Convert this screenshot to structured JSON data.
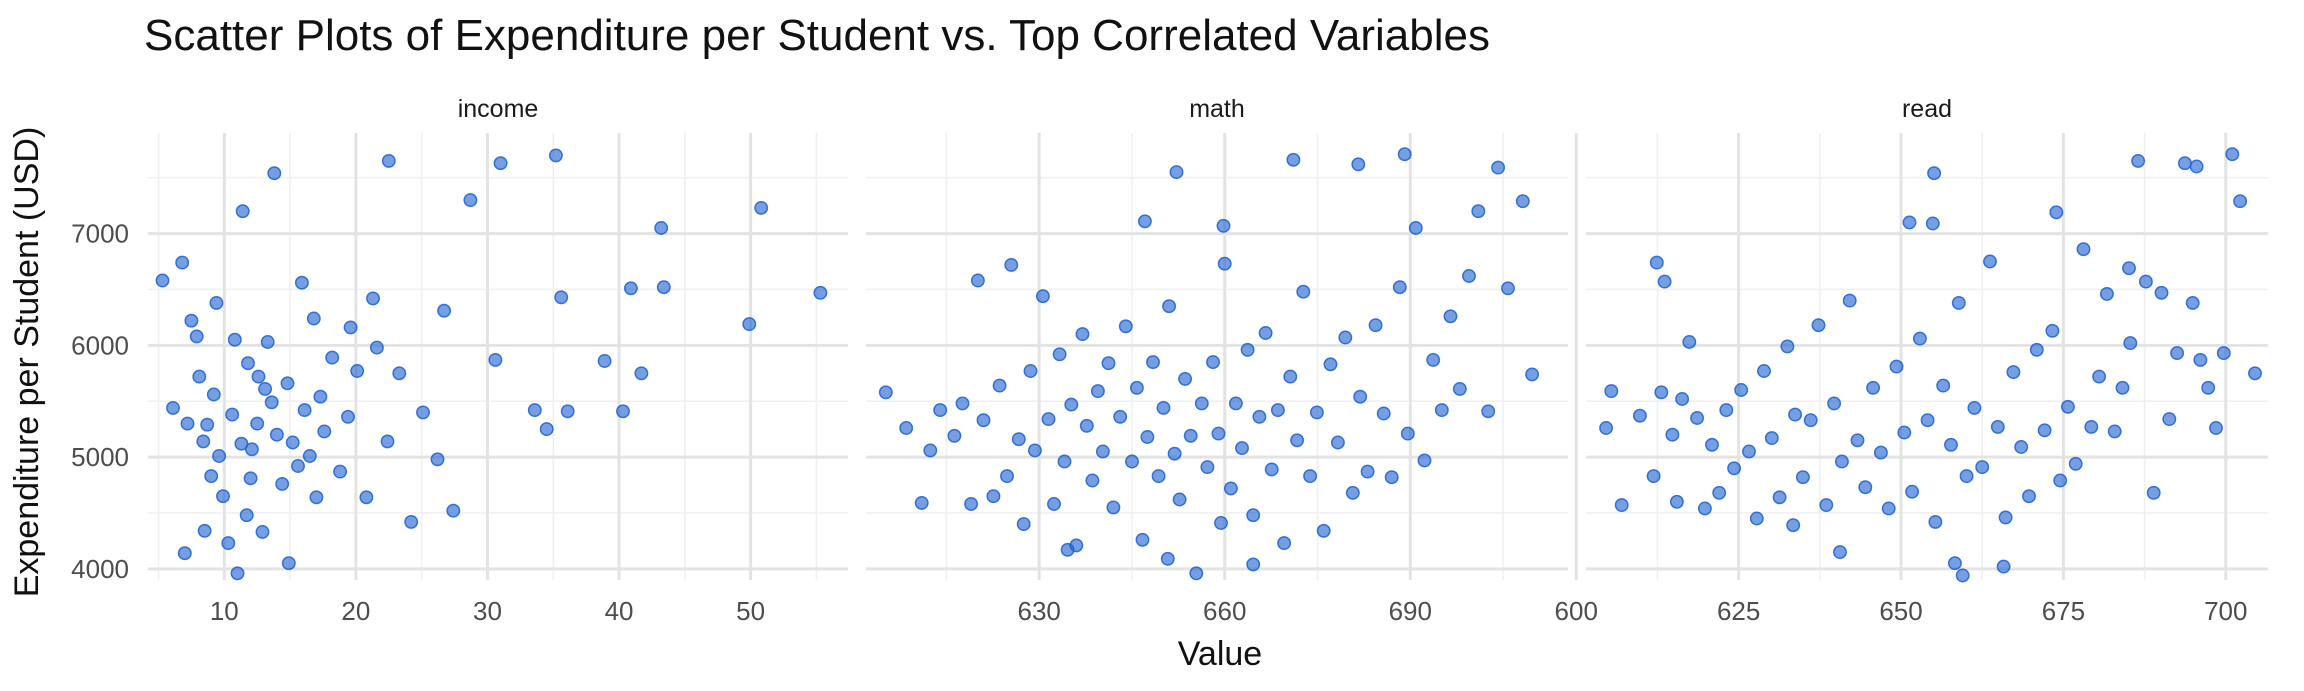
{
  "chart_data": {
    "type": "scatter",
    "title": "Scatter Plots of Expenditure per Student vs. Top Correlated Variables",
    "xlabel": "Value",
    "ylabel": "Expenditure per Student (USD)",
    "grid": true,
    "y_ticks": [
      "4000",
      "5000",
      "6000",
      "7000"
    ],
    "ylim": [
      3900,
      7900
    ],
    "facets": [
      {
        "label": "income",
        "xlim": [
          4.2,
          57.4
        ],
        "x_ticks": [
          "10",
          "20",
          "30",
          "40",
          "50"
        ],
        "x_tick_values": [
          10,
          20,
          30,
          40,
          50
        ],
        "points": [
          [
            5.3,
            6580
          ],
          [
            6.1,
            5440
          ],
          [
            6.8,
            6740
          ],
          [
            7.2,
            5300
          ],
          [
            7.5,
            6220
          ],
          [
            7.9,
            6080
          ],
          [
            8.1,
            5720
          ],
          [
            8.4,
            5140
          ],
          [
            8.7,
            5290
          ],
          [
            9.0,
            4830
          ],
          [
            9.2,
            5560
          ],
          [
            9.6,
            5010
          ],
          [
            9.9,
            4650
          ],
          [
            10.3,
            4230
          ],
          [
            10.6,
            5380
          ],
          [
            11.0,
            3960
          ],
          [
            11.3,
            5120
          ],
          [
            11.7,
            4480
          ],
          [
            12.1,
            5070
          ],
          [
            12.5,
            5300
          ],
          [
            12.9,
            4330
          ],
          [
            13.3,
            6030
          ],
          [
            13.6,
            5490
          ],
          [
            14.0,
            5200
          ],
          [
            14.4,
            4760
          ],
          [
            14.8,
            5660
          ],
          [
            15.2,
            5130
          ],
          [
            15.6,
            4920
          ],
          [
            16.1,
            5420
          ],
          [
            16.5,
            5010
          ],
          [
            17.0,
            4640
          ],
          [
            17.6,
            5230
          ],
          [
            18.2,
            5890
          ],
          [
            18.8,
            4870
          ],
          [
            19.4,
            5360
          ],
          [
            20.1,
            5770
          ],
          [
            20.8,
            4640
          ],
          [
            21.6,
            5980
          ],
          [
            22.4,
            5140
          ],
          [
            23.3,
            5750
          ],
          [
            24.2,
            4420
          ],
          [
            25.1,
            5400
          ],
          [
            26.2,
            4980
          ],
          [
            27.4,
            4520
          ],
          [
            28.7,
            7300
          ],
          [
            30.6,
            5870
          ],
          [
            31.0,
            7630
          ],
          [
            33.6,
            5420
          ],
          [
            34.5,
            5250
          ],
          [
            35.2,
            7700
          ],
          [
            35.6,
            6430
          ],
          [
            36.1,
            5410
          ],
          [
            38.9,
            5860
          ],
          [
            40.3,
            5410
          ],
          [
            40.9,
            6510
          ],
          [
            41.7,
            5750
          ],
          [
            43.2,
            7050
          ],
          [
            43.4,
            6520
          ],
          [
            49.9,
            6190
          ],
          [
            50.8,
            7230
          ],
          [
            55.3,
            6470
          ],
          [
            11.4,
            7200
          ],
          [
            12.6,
            5720
          ],
          [
            13.8,
            7540
          ],
          [
            15.9,
            6560
          ],
          [
            22.5,
            7650
          ],
          [
            7.0,
            4140
          ],
          [
            8.5,
            4340
          ],
          [
            14.9,
            4050
          ],
          [
            11.8,
            5840
          ],
          [
            16.8,
            6240
          ],
          [
            19.6,
            6160
          ],
          [
            21.3,
            6420
          ],
          [
            26.7,
            6310
          ],
          [
            9.4,
            6380
          ],
          [
            12.0,
            4810
          ],
          [
            13.1,
            5610
          ],
          [
            17.3,
            5540
          ],
          [
            10.8,
            6050
          ]
        ]
      },
      {
        "label": "math",
        "xlim": [
          602.0,
          715.5
        ],
        "x_ticks": [
          "630",
          "660",
          "690"
        ],
        "x_tick_values": [
          630,
          660,
          690
        ],
        "points": [
          [
            605.2,
            5580
          ],
          [
            608.5,
            5260
          ],
          [
            611.0,
            4590
          ],
          [
            612.4,
            5060
          ],
          [
            614.0,
            5420
          ],
          [
            616.3,
            5190
          ],
          [
            617.6,
            5480
          ],
          [
            619.0,
            4580
          ],
          [
            620.1,
            6580
          ],
          [
            621.0,
            5330
          ],
          [
            622.6,
            4650
          ],
          [
            623.6,
            5640
          ],
          [
            624.8,
            4830
          ],
          [
            625.5,
            6720
          ],
          [
            626.7,
            5160
          ],
          [
            627.5,
            4400
          ],
          [
            628.6,
            5770
          ],
          [
            629.3,
            5060
          ],
          [
            630.6,
            6440
          ],
          [
            631.5,
            5340
          ],
          [
            632.4,
            4580
          ],
          [
            633.3,
            5920
          ],
          [
            634.1,
            4960
          ],
          [
            635.2,
            5470
          ],
          [
            636.0,
            4210
          ],
          [
            637.0,
            6100
          ],
          [
            637.7,
            5280
          ],
          [
            638.6,
            4790
          ],
          [
            639.5,
            5590
          ],
          [
            640.3,
            5050
          ],
          [
            641.2,
            5840
          ],
          [
            642.0,
            4550
          ],
          [
            643.1,
            5360
          ],
          [
            644.0,
            6170
          ],
          [
            645.0,
            4960
          ],
          [
            645.8,
            5620
          ],
          [
            646.7,
            4260
          ],
          [
            647.5,
            5180
          ],
          [
            648.4,
            5850
          ],
          [
            649.3,
            4830
          ],
          [
            650.1,
            5440
          ],
          [
            651.0,
            6350
          ],
          [
            651.9,
            5030
          ],
          [
            652.7,
            4620
          ],
          [
            653.6,
            5700
          ],
          [
            654.5,
            5190
          ],
          [
            655.4,
            3960
          ],
          [
            656.3,
            5480
          ],
          [
            657.2,
            4910
          ],
          [
            658.1,
            5850
          ],
          [
            659.0,
            5210
          ],
          [
            660.0,
            6730
          ],
          [
            661.0,
            4720
          ],
          [
            661.8,
            5480
          ],
          [
            662.8,
            5080
          ],
          [
            663.7,
            5960
          ],
          [
            664.6,
            4480
          ],
          [
            665.6,
            5360
          ],
          [
            666.6,
            6110
          ],
          [
            667.6,
            4890
          ],
          [
            668.6,
            5420
          ],
          [
            669.6,
            4230
          ],
          [
            670.6,
            5720
          ],
          [
            671.7,
            5150
          ],
          [
            672.7,
            6480
          ],
          [
            673.8,
            4830
          ],
          [
            674.9,
            5400
          ],
          [
            676.0,
            4340
          ],
          [
            677.1,
            5830
          ],
          [
            678.3,
            5130
          ],
          [
            679.5,
            6070
          ],
          [
            680.7,
            4680
          ],
          [
            681.9,
            5540
          ],
          [
            683.1,
            4870
          ],
          [
            684.4,
            6180
          ],
          [
            685.7,
            5390
          ],
          [
            687.0,
            4820
          ],
          [
            688.3,
            6520
          ],
          [
            689.6,
            5210
          ],
          [
            690.9,
            7050
          ],
          [
            692.3,
            4970
          ],
          [
            693.7,
            5870
          ],
          [
            695.1,
            5420
          ],
          [
            696.5,
            6260
          ],
          [
            698.0,
            5610
          ],
          [
            699.5,
            6620
          ],
          [
            701.0,
            7200
          ],
          [
            702.6,
            5410
          ],
          [
            704.2,
            7590
          ],
          [
            705.8,
            6510
          ],
          [
            708.2,
            7290
          ],
          [
            709.7,
            5740
          ],
          [
            652.2,
            7550
          ],
          [
            659.8,
            7070
          ],
          [
            671.1,
            7660
          ],
          [
            681.6,
            7620
          ],
          [
            689.1,
            7710
          ],
          [
            647.1,
            7110
          ],
          [
            650.8,
            4090
          ],
          [
            664.6,
            4040
          ],
          [
            659.4,
            4410
          ],
          [
            634.6,
            4170
          ]
        ]
      },
      {
        "label": "read",
        "xlim": [
          601.5,
          706.5
        ],
        "x_ticks": [
          "600",
          "625",
          "650",
          "675",
          "700"
        ],
        "x_tick_values": [
          600,
          625,
          650,
          675,
          700
        ],
        "points": [
          [
            604.6,
            5260
          ],
          [
            605.4,
            5590
          ],
          [
            607.0,
            4570
          ],
          [
            609.8,
            5370
          ],
          [
            611.9,
            4830
          ],
          [
            612.4,
            6740
          ],
          [
            613.1,
            5580
          ],
          [
            613.6,
            6570
          ],
          [
            614.8,
            5200
          ],
          [
            615.5,
            4600
          ],
          [
            616.3,
            5520
          ],
          [
            617.4,
            6030
          ],
          [
            618.6,
            5350
          ],
          [
            619.8,
            4540
          ],
          [
            620.9,
            5110
          ],
          [
            622.0,
            4680
          ],
          [
            623.1,
            5420
          ],
          [
            624.3,
            4900
          ],
          [
            625.4,
            5600
          ],
          [
            626.6,
            5050
          ],
          [
            627.8,
            4450
          ],
          [
            628.9,
            5770
          ],
          [
            630.1,
            5170
          ],
          [
            631.3,
            4640
          ],
          [
            632.5,
            5990
          ],
          [
            633.7,
            5380
          ],
          [
            634.9,
            4820
          ],
          [
            636.1,
            5330
          ],
          [
            637.3,
            6180
          ],
          [
            638.5,
            4570
          ],
          [
            639.7,
            5480
          ],
          [
            640.9,
            4960
          ],
          [
            642.1,
            6400
          ],
          [
            643.3,
            5150
          ],
          [
            644.5,
            4730
          ],
          [
            645.7,
            5620
          ],
          [
            646.9,
            5040
          ],
          [
            648.1,
            4540
          ],
          [
            649.3,
            5810
          ],
          [
            650.5,
            5220
          ],
          [
            651.7,
            4690
          ],
          [
            652.9,
            6060
          ],
          [
            654.1,
            5330
          ],
          [
            655.3,
            4420
          ],
          [
            656.5,
            5640
          ],
          [
            657.7,
            5110
          ],
          [
            658.9,
            6380
          ],
          [
            660.1,
            4830
          ],
          [
            661.3,
            5440
          ],
          [
            662.5,
            4910
          ],
          [
            663.7,
            6750
          ],
          [
            664.9,
            5270
          ],
          [
            666.1,
            4460
          ],
          [
            667.3,
            5760
          ],
          [
            668.5,
            5090
          ],
          [
            669.7,
            4650
          ],
          [
            670.9,
            5960
          ],
          [
            672.1,
            5240
          ],
          [
            673.3,
            6130
          ],
          [
            674.5,
            4790
          ],
          [
            675.7,
            5450
          ],
          [
            676.9,
            4940
          ],
          [
            678.1,
            6860
          ],
          [
            679.3,
            5270
          ],
          [
            680.5,
            5720
          ],
          [
            681.7,
            6460
          ],
          [
            682.9,
            5230
          ],
          [
            684.1,
            5620
          ],
          [
            685.3,
            6020
          ],
          [
            686.5,
            7650
          ],
          [
            687.7,
            6570
          ],
          [
            688.9,
            4680
          ],
          [
            690.1,
            6470
          ],
          [
            691.3,
            5340
          ],
          [
            692.5,
            5930
          ],
          [
            693.7,
            7630
          ],
          [
            694.9,
            6380
          ],
          [
            696.1,
            5870
          ],
          [
            697.3,
            5620
          ],
          [
            698.5,
            5260
          ],
          [
            699.7,
            5930
          ],
          [
            701.0,
            7710
          ],
          [
            702.2,
            7290
          ],
          [
            704.5,
            5750
          ],
          [
            655.1,
            7540
          ],
          [
            654.9,
            7090
          ],
          [
            651.3,
            7100
          ],
          [
            673.9,
            7190
          ],
          [
            695.5,
            7600
          ],
          [
            685.1,
            6690
          ],
          [
            658.3,
            4050
          ],
          [
            659.5,
            3940
          ],
          [
            665.8,
            4020
          ],
          [
            640.6,
            4150
          ],
          [
            633.4,
            4390
          ]
        ]
      }
    ]
  }
}
